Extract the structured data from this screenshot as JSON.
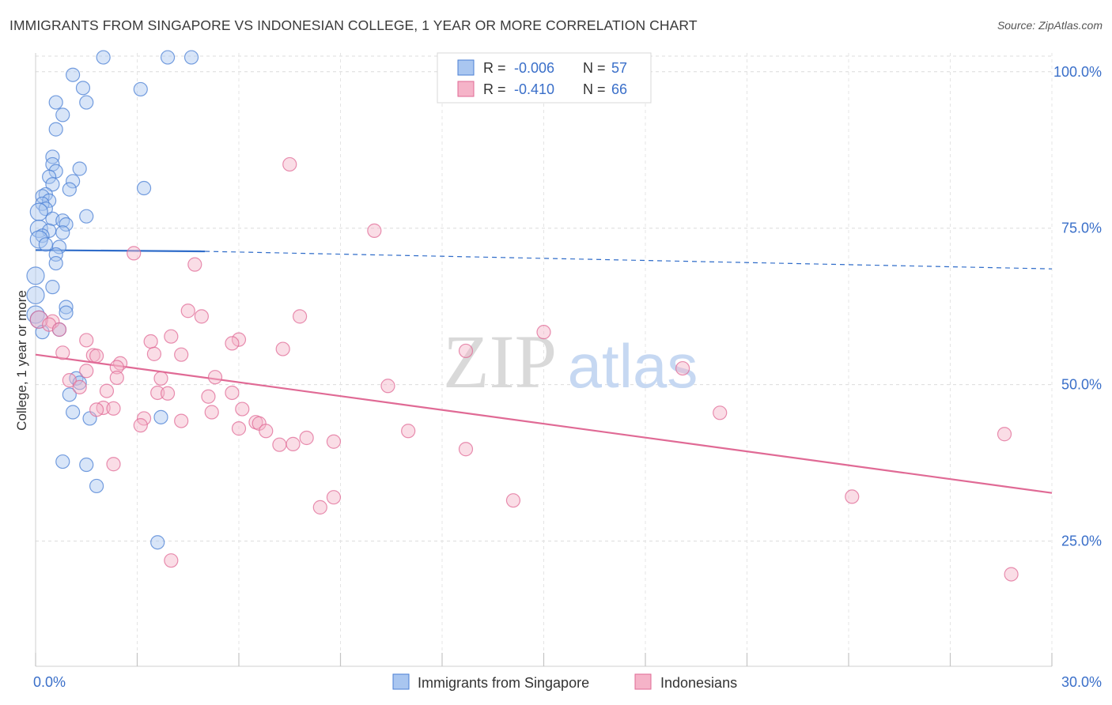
{
  "title": "IMMIGRANTS FROM SINGAPORE VS INDONESIAN COLLEGE, 1 YEAR OR MORE CORRELATION CHART",
  "source": "Source: ZipAtlas.com",
  "watermark": {
    "zip": "ZIP",
    "atlas": "atlas"
  },
  "colors": {
    "blue": "#4a7fd4",
    "pink": "#e06a95",
    "blue_fill": "#a9c6f0",
    "pink_fill": "#f5b3c8"
  },
  "legend_top": [
    {
      "series": "blue",
      "r_label": "R =",
      "r_value": "-0.006",
      "n_label": "N =",
      "n_value": "57"
    },
    {
      "series": "pink",
      "r_label": "R =",
      "r_value": "-0.410",
      "n_label": "N =",
      "n_value": "66"
    }
  ],
  "chart_data": {
    "type": "scatter",
    "title": "IMMIGRANTS FROM SINGAPORE VS INDONESIAN COLLEGE, 1 YEAR OR MORE CORRELATION CHART",
    "xlabel": "",
    "ylabel": "College, 1 year or more",
    "xlim": [
      0,
      30
    ],
    "ylim": [
      5,
      103
    ],
    "x_tick_labels": [
      {
        "value": 0,
        "label": "0.0%"
      },
      {
        "value": 30,
        "label": "30.0%"
      }
    ],
    "y_tick_labels": [
      {
        "value": 100,
        "label": "100.0%"
      },
      {
        "value": 75,
        "label": "75.0%"
      },
      {
        "value": 50,
        "label": "50.0%"
      },
      {
        "value": 25,
        "label": "25.0%"
      }
    ],
    "grid": true,
    "legend": "bottom",
    "series": [
      {
        "name": "Immigrants from Singapore",
        "color": "#4a7fd4",
        "trend": {
          "x0": 0,
          "y0": 71.5,
          "x1": 5,
          "y1": 71.3,
          "x_dash_end": 30,
          "y_dash_end": 68.5
        },
        "points": [
          [
            2.0,
            102.3
          ],
          [
            3.9,
            102.3
          ],
          [
            4.6,
            102.3
          ],
          [
            1.1,
            99.5
          ],
          [
            1.4,
            97.4
          ],
          [
            3.1,
            97.2
          ],
          [
            0.6,
            95.1
          ],
          [
            1.5,
            95.1
          ],
          [
            0.8,
            93.1
          ],
          [
            0.6,
            90.8
          ],
          [
            0.5,
            86.4
          ],
          [
            0.5,
            85.2
          ],
          [
            1.3,
            84.5
          ],
          [
            0.6,
            84.1
          ],
          [
            0.4,
            83.2
          ],
          [
            1.1,
            82.5
          ],
          [
            0.5,
            82.0
          ],
          [
            3.2,
            81.4
          ],
          [
            1.0,
            81.2
          ],
          [
            0.3,
            80.4
          ],
          [
            0.2,
            80.1
          ],
          [
            0.4,
            79.4
          ],
          [
            0.2,
            78.9
          ],
          [
            0.3,
            78.1
          ],
          [
            0.1,
            77.6
          ],
          [
            1.5,
            76.9
          ],
          [
            0.5,
            76.5
          ],
          [
            0.8,
            76.2
          ],
          [
            0.9,
            75.6
          ],
          [
            0.1,
            74.9
          ],
          [
            0.8,
            74.3
          ],
          [
            0.4,
            74.6
          ],
          [
            0.2,
            73.8
          ],
          [
            0.1,
            73.2
          ],
          [
            0.3,
            72.4
          ],
          [
            0.7,
            72.0
          ],
          [
            0.6,
            70.8
          ],
          [
            0.6,
            69.4
          ],
          [
            0.0,
            67.4
          ],
          [
            0.5,
            65.6
          ],
          [
            0.0,
            64.3
          ],
          [
            0.9,
            62.4
          ],
          [
            0.9,
            61.5
          ],
          [
            0.0,
            61.2
          ],
          [
            0.1,
            60.4
          ],
          [
            0.7,
            58.8
          ],
          [
            0.2,
            58.4
          ],
          [
            1.2,
            51.0
          ],
          [
            1.3,
            50.3
          ],
          [
            1.0,
            48.4
          ],
          [
            3.7,
            44.8
          ],
          [
            1.6,
            44.6
          ],
          [
            1.1,
            45.6
          ],
          [
            0.8,
            37.7
          ],
          [
            1.5,
            37.2
          ],
          [
            1.8,
            33.8
          ],
          [
            3.6,
            24.8
          ]
        ]
      },
      {
        "name": "Indonesians",
        "color": "#e06a95",
        "trend": {
          "x0": 0,
          "y0": 54.8,
          "x1": 30,
          "y1": 32.7
        },
        "points": [
          [
            7.5,
            85.2
          ],
          [
            10.0,
            74.6
          ],
          [
            2.9,
            71.0
          ],
          [
            4.7,
            69.2
          ],
          [
            4.5,
            61.8
          ],
          [
            4.9,
            60.9
          ],
          [
            7.8,
            60.9
          ],
          [
            0.1,
            60.4
          ],
          [
            0.5,
            60.1
          ],
          [
            0.4,
            59.6
          ],
          [
            0.7,
            58.8
          ],
          [
            15.0,
            58.4
          ],
          [
            4.0,
            57.7
          ],
          [
            6.0,
            57.2
          ],
          [
            1.5,
            57.1
          ],
          [
            3.4,
            56.9
          ],
          [
            5.8,
            56.6
          ],
          [
            7.3,
            55.7
          ],
          [
            12.7,
            55.4
          ],
          [
            0.8,
            55.1
          ],
          [
            3.5,
            54.9
          ],
          [
            4.3,
            54.8
          ],
          [
            1.7,
            54.7
          ],
          [
            1.8,
            54.6
          ],
          [
            2.5,
            53.4
          ],
          [
            2.4,
            52.8
          ],
          [
            19.1,
            52.6
          ],
          [
            1.5,
            52.2
          ],
          [
            2.4,
            51.1
          ],
          [
            5.3,
            51.2
          ],
          [
            3.7,
            51.0
          ],
          [
            1.0,
            50.7
          ],
          [
            10.4,
            49.8
          ],
          [
            1.3,
            49.6
          ],
          [
            2.1,
            49.0
          ],
          [
            3.6,
            48.7
          ],
          [
            3.9,
            48.6
          ],
          [
            5.8,
            48.7
          ],
          [
            5.1,
            48.1
          ],
          [
            2.0,
            46.3
          ],
          [
            2.3,
            46.2
          ],
          [
            6.1,
            46.1
          ],
          [
            5.2,
            45.6
          ],
          [
            20.2,
            45.5
          ],
          [
            3.2,
            44.6
          ],
          [
            4.3,
            44.2
          ],
          [
            6.5,
            44.0
          ],
          [
            6.6,
            43.8
          ],
          [
            6.0,
            43.0
          ],
          [
            11.0,
            42.6
          ],
          [
            6.8,
            42.6
          ],
          [
            28.6,
            42.1
          ],
          [
            8.0,
            41.5
          ],
          [
            8.8,
            40.9
          ],
          [
            7.2,
            40.4
          ],
          [
            7.6,
            40.5
          ],
          [
            12.7,
            39.7
          ],
          [
            2.3,
            37.3
          ],
          [
            8.8,
            32.0
          ],
          [
            14.1,
            31.5
          ],
          [
            8.4,
            30.4
          ],
          [
            24.1,
            32.1
          ],
          [
            4.0,
            21.9
          ],
          [
            28.8,
            19.7
          ],
          [
            3.1,
            43.5
          ],
          [
            1.8,
            46.0
          ]
        ]
      }
    ]
  },
  "legend_bottom": [
    {
      "series": "blue",
      "label": "Immigrants from Singapore"
    },
    {
      "series": "pink",
      "label": "Indonesians"
    }
  ]
}
